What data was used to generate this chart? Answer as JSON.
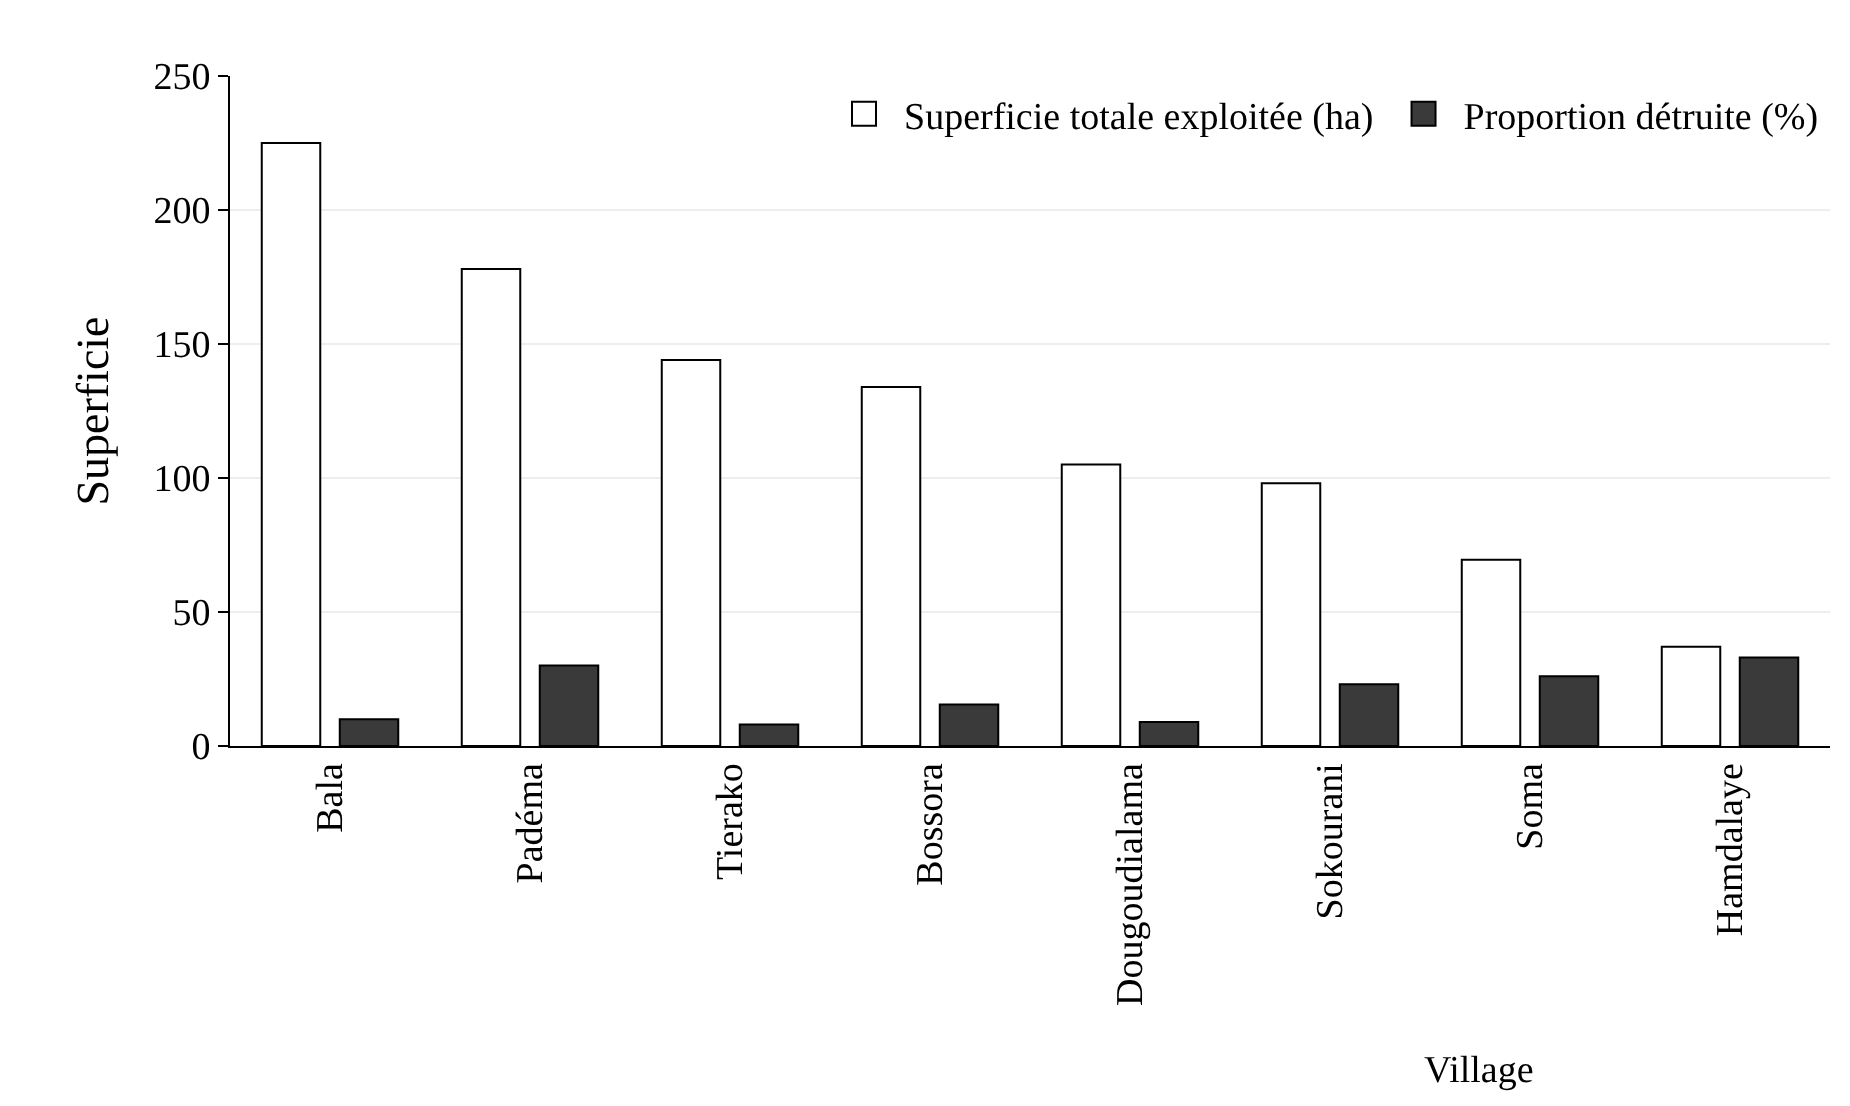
{
  "chart_data": {
    "type": "bar",
    "xlabel": "Village",
    "ylabel": "Superficie",
    "categories": [
      "Bala",
      "Padéma",
      "Tierako",
      "Bossora",
      "Dougoudialama",
      "Sokourani",
      "Soma",
      "Hamdalaye"
    ],
    "series": [
      {
        "name": "Superficie totale exploitée (ha)",
        "color": "#ffffff",
        "values": [
          225,
          178,
          144,
          134,
          105,
          98,
          69.5,
          37
        ]
      },
      {
        "name": "Proportion détruite (%)",
        "color": "#3a3a3a",
        "values": [
          10,
          30,
          8,
          15.5,
          9,
          23,
          26,
          33
        ]
      }
    ],
    "ylim": [
      0,
      250
    ],
    "yticks": [
      0,
      50,
      100,
      150,
      200,
      250
    ],
    "grid": "y",
    "legend": "top right"
  }
}
